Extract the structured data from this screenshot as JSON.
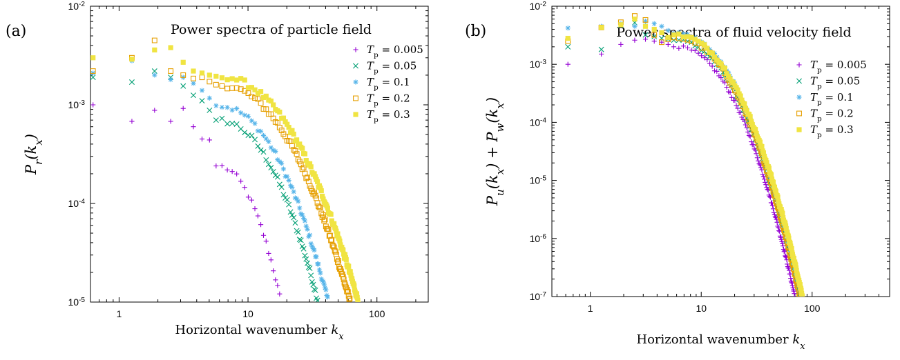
{
  "figure": {
    "colors": {
      "tp_0_005": "#9400d3",
      "tp_0_05": "#009e73",
      "tp_0_1": "#56b4e9",
      "tp_0_2": "#e69f00",
      "tp_0_3": "#f0e442"
    }
  },
  "chart_data": [
    {
      "type": "scatter",
      "panel_label": "(a)",
      "title": "Power spectra of particle field",
      "xlabel": "Horizontal wavenumber k_x",
      "ylabel": "P_r(k_x)",
      "xscale": "log",
      "yscale": "log",
      "xlim": [
        0.6,
        250
      ],
      "ylim": [
        1e-05,
        0.01
      ],
      "xticks": [
        1,
        10,
        100
      ],
      "xtick_labels": [
        "1",
        "10",
        "100"
      ],
      "yticks": [
        1e-05,
        0.0001,
        0.001,
        0.01
      ],
      "ytick_labels": [
        "10-5",
        "10-4",
        "10-3",
        "10-2"
      ],
      "legend_position": "top-right",
      "series": [
        {
          "name": "T_p = 0.005",
          "tp": "0.005",
          "marker": "plus",
          "color": "#9400d3",
          "kmax": 18,
          "points": [
            [
              0.628,
              0.001
            ],
            [
              1.257,
              0.00068
            ],
            [
              1.885,
              0.00088
            ],
            [
              2.513,
              0.00068
            ],
            [
              3.142,
              0.00092
            ],
            [
              3.77,
              0.0006
            ],
            [
              4.398,
              0.00045
            ],
            [
              5.027,
              0.00044
            ],
            [
              5.655,
              0.00024
            ]
          ]
        },
        {
          "name": "T_p = 0.05",
          "tp": "0.05",
          "marker": "cross",
          "color": "#009e73",
          "kmax": 35,
          "points": [
            [
              0.628,
              0.0019
            ],
            [
              1.257,
              0.0017
            ],
            [
              1.885,
              0.0022
            ],
            [
              2.513,
              0.0019
            ],
            [
              3.142,
              0.00155
            ],
            [
              3.77,
              0.00125
            ],
            [
              4.398,
              0.0011
            ],
            [
              5.027,
              0.00088
            ],
            [
              5.655,
              0.0007
            ]
          ]
        },
        {
          "name": "T_p = 0.1",
          "tp": "0.1",
          "marker": "star",
          "color": "#56b4e9",
          "kmax": 42,
          "points": [
            [
              0.628,
              0.0021
            ],
            [
              1.257,
              0.0028
            ],
            [
              1.885,
              0.002
            ],
            [
              2.513,
              0.0018
            ],
            [
              3.142,
              0.0019
            ],
            [
              3.77,
              0.00165
            ],
            [
              4.398,
              0.0014
            ],
            [
              5.027,
              0.00117
            ],
            [
              5.655,
              0.00098
            ]
          ]
        },
        {
          "name": "T_p = 0.2",
          "tp": "0.2",
          "marker": "square-open",
          "color": "#e69f00",
          "kmax": 62,
          "points": [
            [
              0.628,
              0.0022
            ],
            [
              1.257,
              0.003
            ],
            [
              1.885,
              0.0045
            ],
            [
              2.513,
              0.0022
            ],
            [
              3.142,
              0.002
            ],
            [
              3.77,
              0.00185
            ],
            [
              4.398,
              0.0019
            ],
            [
              5.027,
              0.00172
            ],
            [
              5.655,
              0.0016
            ]
          ]
        },
        {
          "name": "T_p = 0.3",
          "tp": "0.3",
          "marker": "square-filled",
          "color": "#f0e442",
          "kmax": 72,
          "points": [
            [
              0.628,
              0.003
            ],
            [
              1.257,
              0.0029
            ],
            [
              1.885,
              0.0036
            ],
            [
              2.513,
              0.0038
            ],
            [
              3.142,
              0.0027
            ],
            [
              3.77,
              0.0022
            ],
            [
              4.398,
              0.0021
            ],
            [
              5.027,
              0.002
            ],
            [
              5.655,
              0.00195
            ]
          ]
        }
      ]
    },
    {
      "type": "scatter",
      "panel_label": "(b)",
      "title": "Power spectra of fluid velocity field",
      "xlabel": "Horizontal wavenumber k_x",
      "ylabel": "P_u(k_x) + P_w(k_x)",
      "xscale": "log",
      "yscale": "log",
      "xlim": [
        0.45,
        500
      ],
      "ylim": [
        1e-07,
        0.01
      ],
      "xticks": [
        1,
        10,
        100
      ],
      "xtick_labels": [
        "1",
        "10",
        "100"
      ],
      "yticks": [
        1e-07,
        1e-06,
        1e-05,
        0.0001,
        0.001,
        0.01
      ],
      "ytick_labels": [
        "10-7",
        "10-6",
        "10-5",
        "10-4",
        "10-3",
        "10-2"
      ],
      "legend_position": "top-right",
      "series": [
        {
          "name": "T_p = 0.005",
          "tp": "0.005",
          "marker": "plus",
          "color": "#9400d3",
          "kmax": 70,
          "points": [
            [
              0.628,
              0.001
            ],
            [
              1.257,
              0.0015
            ],
            [
              1.885,
              0.0022
            ],
            [
              2.513,
              0.0026
            ],
            [
              3.142,
              0.0027
            ],
            [
              3.77,
              0.0025
            ],
            [
              4.398,
              0.0024
            ],
            [
              5.027,
              0.0022
            ],
            [
              5.655,
              0.002
            ]
          ]
        },
        {
          "name": "T_p = 0.05",
          "tp": "0.05",
          "marker": "cross",
          "color": "#009e73",
          "kmax": 78,
          "points": [
            [
              0.628,
              0.002
            ],
            [
              1.257,
              0.0018
            ],
            [
              1.885,
              0.0047
            ],
            [
              2.513,
              0.0052
            ],
            [
              3.142,
              0.0032
            ],
            [
              3.77,
              0.003
            ],
            [
              4.398,
              0.0028
            ],
            [
              5.027,
              0.0027
            ],
            [
              5.655,
              0.0026
            ]
          ]
        },
        {
          "name": "T_p = 0.1",
          "tp": "0.1",
          "marker": "star",
          "color": "#56b4e9",
          "kmax": 80,
          "points": [
            [
              0.628,
              0.0042
            ],
            [
              1.257,
              0.0045
            ],
            [
              1.885,
              0.005
            ],
            [
              2.513,
              0.0045
            ],
            [
              3.142,
              0.0055
            ],
            [
              3.77,
              0.005
            ],
            [
              4.398,
              0.0045
            ],
            [
              5.027,
              0.0038
            ],
            [
              5.655,
              0.0034
            ]
          ]
        },
        {
          "name": "T_p = 0.2",
          "tp": "0.2",
          "marker": "square-open",
          "color": "#e69f00",
          "kmax": 78,
          "points": [
            [
              0.628,
              0.0025
            ],
            [
              1.257,
              0.0043
            ],
            [
              1.885,
              0.0053
            ],
            [
              2.513,
              0.0068
            ],
            [
              3.142,
              0.0058
            ],
            [
              3.77,
              0.0032
            ],
            [
              4.398,
              0.0024
            ],
            [
              5.027,
              0.0027
            ],
            [
              5.655,
              0.0029
            ]
          ]
        },
        {
          "name": "T_p = 0.3",
          "tp": "0.3",
          "marker": "square-filled",
          "color": "#f0e442",
          "kmax": 82,
          "points": [
            [
              0.628,
              0.0028
            ],
            [
              1.257,
              0.0043
            ],
            [
              1.885,
              0.0048
            ],
            [
              2.513,
              0.006
            ],
            [
              3.142,
              0.0045
            ],
            [
              3.77,
              0.004
            ],
            [
              4.398,
              0.0035
            ],
            [
              5.027,
              0.0029
            ],
            [
              5.655,
              0.0032
            ]
          ]
        }
      ]
    }
  ]
}
